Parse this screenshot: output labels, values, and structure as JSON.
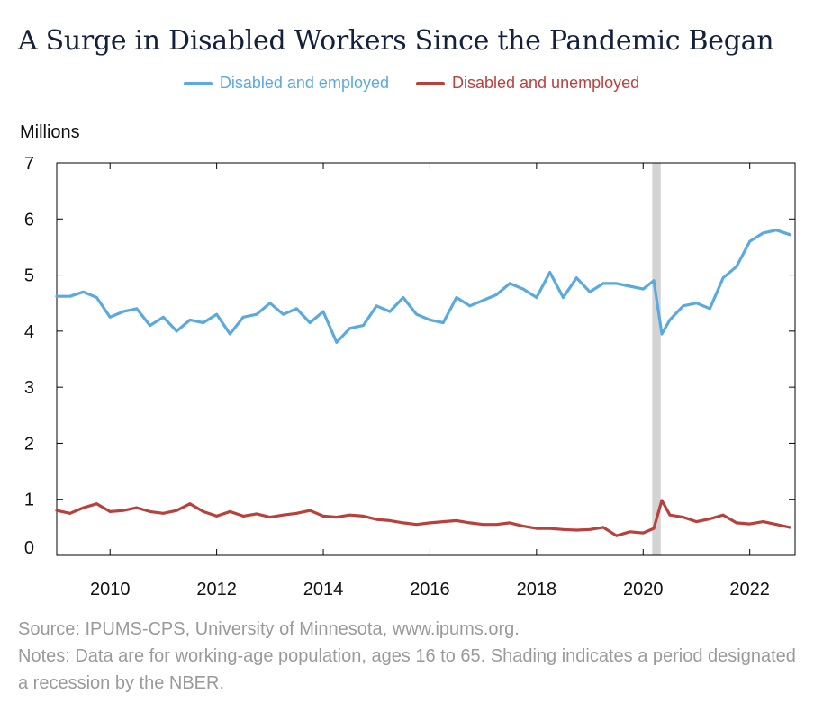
{
  "title": "A Surge in Disabled Workers Since the Pandemic Began",
  "unit_label": "Millions",
  "source": "Source: IPUMS-CPS, University of Minnesota, www.ipums.org.",
  "notes": "Notes: Data are for working-age population, ages 16 to 65. Shading indicates a period designated a recession by the NBER.",
  "chart_data": {
    "type": "line",
    "title": "A Surge in Disabled Workers Since the Pandemic Began",
    "ylabel": "Millions",
    "xlim": [
      2009.0,
      2022.85
    ],
    "ylim": [
      0,
      7
    ],
    "x_ticks": [
      "2010",
      "2012",
      "2014",
      "2016",
      "2018",
      "2020",
      "2022"
    ],
    "y_ticks": [
      "0",
      "1",
      "2",
      "3",
      "4",
      "5",
      "6",
      "7"
    ],
    "legend_position": "top-center",
    "grid": false,
    "recession": {
      "start": 2020.17,
      "end": 2020.33,
      "color": "#d3d3d3"
    },
    "series": [
      {
        "name": "Disabled and employed",
        "color": "#5aaadf",
        "x": [
          2009.0,
          2009.25,
          2009.5,
          2009.75,
          2010.0,
          2010.25,
          2010.5,
          2010.75,
          2011.0,
          2011.25,
          2011.5,
          2011.75,
          2012.0,
          2012.25,
          2012.5,
          2012.75,
          2013.0,
          2013.25,
          2013.5,
          2013.75,
          2014.0,
          2014.25,
          2014.5,
          2014.75,
          2015.0,
          2015.25,
          2015.5,
          2015.75,
          2016.0,
          2016.25,
          2016.5,
          2016.75,
          2017.0,
          2017.25,
          2017.5,
          2017.75,
          2018.0,
          2018.25,
          2018.5,
          2018.75,
          2019.0,
          2019.25,
          2019.5,
          2019.75,
          2020.0,
          2020.2,
          2020.35,
          2020.5,
          2020.75,
          2021.0,
          2021.25,
          2021.5,
          2021.75,
          2022.0,
          2022.25,
          2022.5,
          2022.75
        ],
        "values": [
          4.62,
          4.62,
          4.7,
          4.6,
          4.25,
          4.35,
          4.4,
          4.1,
          4.25,
          4.0,
          4.2,
          4.15,
          4.3,
          3.95,
          4.25,
          4.3,
          4.5,
          4.3,
          4.4,
          4.15,
          4.35,
          3.8,
          4.05,
          4.1,
          4.45,
          4.35,
          4.6,
          4.3,
          4.2,
          4.15,
          4.6,
          4.45,
          4.55,
          4.65,
          4.85,
          4.75,
          4.6,
          5.05,
          4.6,
          4.95,
          4.7,
          4.85,
          4.85,
          4.8,
          4.75,
          4.9,
          3.95,
          4.2,
          4.45,
          4.5,
          4.4,
          4.95,
          5.15,
          5.6,
          5.75,
          5.8,
          5.72
        ]
      },
      {
        "name": "Disabled and unemployed",
        "color": "#b9413c",
        "x": [
          2009.0,
          2009.25,
          2009.5,
          2009.75,
          2010.0,
          2010.25,
          2010.5,
          2010.75,
          2011.0,
          2011.25,
          2011.5,
          2011.75,
          2012.0,
          2012.25,
          2012.5,
          2012.75,
          2013.0,
          2013.25,
          2013.5,
          2013.75,
          2014.0,
          2014.25,
          2014.5,
          2014.75,
          2015.0,
          2015.25,
          2015.5,
          2015.75,
          2016.0,
          2016.25,
          2016.5,
          2016.75,
          2017.0,
          2017.25,
          2017.5,
          2017.75,
          2018.0,
          2018.25,
          2018.5,
          2018.75,
          2019.0,
          2019.25,
          2019.5,
          2019.75,
          2020.0,
          2020.2,
          2020.35,
          2020.5,
          2020.75,
          2021.0,
          2021.25,
          2021.5,
          2021.75,
          2022.0,
          2022.25,
          2022.5,
          2022.75
        ],
        "values": [
          0.8,
          0.75,
          0.85,
          0.92,
          0.78,
          0.8,
          0.85,
          0.78,
          0.75,
          0.8,
          0.92,
          0.78,
          0.7,
          0.78,
          0.7,
          0.74,
          0.68,
          0.72,
          0.75,
          0.8,
          0.7,
          0.68,
          0.72,
          0.7,
          0.64,
          0.62,
          0.58,
          0.55,
          0.58,
          0.6,
          0.62,
          0.58,
          0.55,
          0.55,
          0.58,
          0.52,
          0.48,
          0.48,
          0.46,
          0.45,
          0.46,
          0.5,
          0.35,
          0.42,
          0.4,
          0.48,
          0.98,
          0.72,
          0.68,
          0.6,
          0.65,
          0.72,
          0.58,
          0.56,
          0.6,
          0.55,
          0.5
        ]
      }
    ]
  }
}
